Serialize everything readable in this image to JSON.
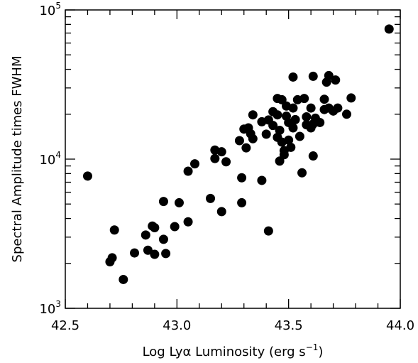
{
  "chart_data": {
    "type": "scatter",
    "title": "",
    "xlabel_parts": {
      "pre": "Log Ly",
      "greek": "α",
      "post": " Luminosity (erg s",
      "sup": "−1",
      "close": ")"
    },
    "ylabel": "Spectral Amplitude times FWHM",
    "xlim": [
      42.5,
      44.0
    ],
    "ylim": [
      1000,
      100000
    ],
    "y_scale": "log",
    "grid": false,
    "x_tick_labels": [
      "42.5",
      "43.0",
      "43.5",
      "44.0"
    ],
    "x_tick_values": [
      42.5,
      43.0,
      43.5,
      44.0
    ],
    "y_tick_labels": [
      {
        "base": "10",
        "exp": "3",
        "value": 1000
      },
      {
        "base": "10",
        "exp": "4",
        "value": 10000
      },
      {
        "base": "10",
        "exp": "5",
        "value": 100000
      }
    ],
    "points": [
      [
        42.6,
        7700
      ],
      [
        42.7,
        2050
      ],
      [
        42.71,
        2180
      ],
      [
        42.72,
        3350
      ],
      [
        42.76,
        1560
      ],
      [
        42.81,
        2350
      ],
      [
        42.86,
        3100
      ],
      [
        42.87,
        2450
      ],
      [
        42.89,
        3560
      ],
      [
        42.9,
        2300
      ],
      [
        42.9,
        3470
      ],
      [
        42.94,
        5200
      ],
      [
        42.94,
        2900
      ],
      [
        42.95,
        2330
      ],
      [
        42.99,
        3530
      ],
      [
        43.01,
        5100
      ],
      [
        43.05,
        8300
      ],
      [
        43.05,
        3800
      ],
      [
        43.08,
        9300
      ],
      [
        43.15,
        5450
      ],
      [
        43.17,
        10100
      ],
      [
        43.17,
        11500
      ],
      [
        43.2,
        11200
      ],
      [
        43.2,
        4450
      ],
      [
        43.22,
        9600
      ],
      [
        43.28,
        13300
      ],
      [
        43.29,
        7500
      ],
      [
        43.29,
        5100
      ],
      [
        43.3,
        15900
      ],
      [
        43.31,
        11900
      ],
      [
        43.32,
        16200
      ],
      [
        43.33,
        14800
      ],
      [
        43.34,
        13700
      ],
      [
        43.34,
        19800
      ],
      [
        43.38,
        7200
      ],
      [
        43.38,
        17800
      ],
      [
        43.4,
        14700
      ],
      [
        43.41,
        18300
      ],
      [
        43.41,
        3300
      ],
      [
        43.43,
        20800
      ],
      [
        43.43,
        16800
      ],
      [
        43.45,
        25500
      ],
      [
        43.45,
        19800
      ],
      [
        43.45,
        14000
      ],
      [
        43.46,
        15600
      ],
      [
        43.46,
        9700
      ],
      [
        43.47,
        25000
      ],
      [
        43.47,
        13000
      ],
      [
        43.48,
        10700
      ],
      [
        43.48,
        11400
      ],
      [
        43.49,
        22700
      ],
      [
        43.49,
        19400
      ],
      [
        43.5,
        17600
      ],
      [
        43.5,
        13400
      ],
      [
        43.51,
        12000
      ],
      [
        43.52,
        35500
      ],
      [
        43.52,
        22000
      ],
      [
        43.52,
        16200
      ],
      [
        43.53,
        18400
      ],
      [
        43.54,
        25000
      ],
      [
        43.55,
        14200
      ],
      [
        43.56,
        8100
      ],
      [
        43.57,
        25500
      ],
      [
        43.58,
        19200
      ],
      [
        43.58,
        17000
      ],
      [
        43.6,
        16200
      ],
      [
        43.6,
        22000
      ],
      [
        43.61,
        35900
      ],
      [
        43.61,
        17200
      ],
      [
        43.61,
        10500
      ],
      [
        43.62,
        18800
      ],
      [
        43.64,
        17600
      ],
      [
        43.66,
        21500
      ],
      [
        43.66,
        25200
      ],
      [
        43.67,
        32800
      ],
      [
        43.68,
        36300
      ],
      [
        43.68,
        22000
      ],
      [
        43.7,
        21000
      ],
      [
        43.71,
        33900
      ],
      [
        43.72,
        22000
      ],
      [
        43.76,
        20000
      ],
      [
        43.78,
        25700
      ],
      [
        43.95,
        74500
      ]
    ]
  }
}
